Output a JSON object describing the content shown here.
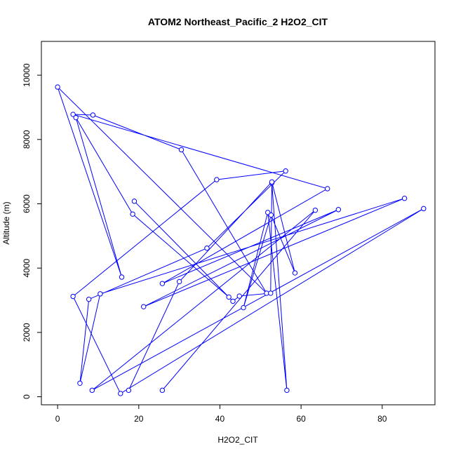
{
  "chart_data": {
    "type": "line",
    "title": "ATOM2 Northeast_Pacific_2 H2O2_CIT",
    "xlabel": "H2O2_CIT",
    "ylabel": "Altitude (m)",
    "xlim": [
      -4,
      93
    ],
    "ylim": [
      -250,
      11050
    ],
    "xticks": [
      0,
      20,
      40,
      60,
      80
    ],
    "yticks": [
      0,
      2000,
      4000,
      6000,
      8000,
      10000
    ],
    "series_color": "#0000ff",
    "series": [
      {
        "points": [
          {
            "x": 25.8,
            "y": 200
          },
          {
            "x": 63.5,
            "y": 5800
          },
          {
            "x": 8.5,
            "y": 200
          },
          {
            "x": 90.2,
            "y": 5850
          },
          {
            "x": 15.5,
            "y": 100
          },
          {
            "x": 3.8,
            "y": 3120
          },
          {
            "x": 39.2,
            "y": 6750
          },
          {
            "x": 56.2,
            "y": 7020
          },
          {
            "x": 36.8,
            "y": 4620
          },
          {
            "x": 7.7,
            "y": 3030
          },
          {
            "x": 5.5,
            "y": 420
          },
          {
            "x": 10.5,
            "y": 3200
          },
          {
            "x": 85.5,
            "y": 6170
          },
          {
            "x": 21.2,
            "y": 2800
          },
          {
            "x": 69.2,
            "y": 5820
          },
          {
            "x": 25.8,
            "y": 3520
          },
          {
            "x": 66.5,
            "y": 6470
          },
          {
            "x": 3.8,
            "y": 8780
          },
          {
            "x": 8.7,
            "y": 8760
          },
          {
            "x": 30.5,
            "y": 7680
          },
          {
            "x": 51.5,
            "y": 3220
          },
          {
            "x": 0.0,
            "y": 9630
          },
          {
            "x": 15.8,
            "y": 3720
          },
          {
            "x": 4.5,
            "y": 8680
          },
          {
            "x": 18.5,
            "y": 5680
          },
          {
            "x": 42.2,
            "y": 3100
          },
          {
            "x": 18.9,
            "y": 6080
          },
          {
            "x": 43.2,
            "y": 2970
          },
          {
            "x": 44.8,
            "y": 3130
          },
          {
            "x": 52.5,
            "y": 3220
          },
          {
            "x": 52.8,
            "y": 6650
          },
          {
            "x": 56.5,
            "y": 200
          },
          {
            "x": 51.8,
            "y": 5730
          },
          {
            "x": 45.8,
            "y": 2770
          },
          {
            "x": 52.6,
            "y": 5650
          },
          {
            "x": 58.5,
            "y": 3850
          },
          {
            "x": 52.8,
            "y": 6680
          },
          {
            "x": 30.0,
            "y": 3580
          },
          {
            "x": 17.5,
            "y": 200
          }
        ]
      }
    ]
  }
}
